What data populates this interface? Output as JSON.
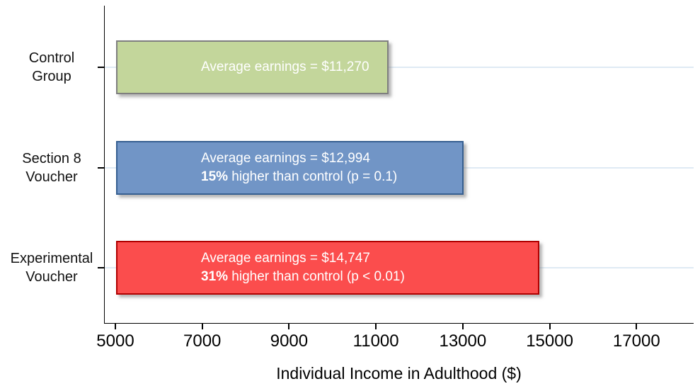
{
  "chart_data": {
    "type": "bar",
    "orientation": "horizontal",
    "title": "",
    "xlabel": "Individual Income in Adulthood ($)",
    "ylabel": "",
    "xlim": [
      5000,
      18315
    ],
    "bar_base": 5000,
    "xticks": [
      "5000",
      "7000",
      "9000",
      "11000",
      "13000",
      "15000",
      "17000"
    ],
    "grid": "light horizontal gridline at each category center",
    "legend_position": "none",
    "categories": [
      "Control Group",
      "Section 8 Voucher",
      "Experimental Voucher"
    ],
    "values": [
      11270,
      12994,
      14747
    ],
    "bars": [
      {
        "name": "control-group",
        "category_lines": [
          "Control",
          "Group"
        ],
        "value": 11270,
        "fill": "#c3d69b",
        "border": "#7f7f7f",
        "annotation_line1": "Average earnings = $11,270",
        "annotation_line2_bold": "",
        "annotation_line2_rest": ""
      },
      {
        "name": "section-8-voucher",
        "category_lines": [
          "Section 8",
          "Voucher"
        ],
        "value": 12994,
        "fill": "#7195c6",
        "border": "#365f91",
        "annotation_line1": "Average earnings = $12,994",
        "annotation_line2_bold": "15%",
        "annotation_line2_rest": " higher than control (p = 0.1)"
      },
      {
        "name": "experimental-voucher",
        "category_lines": [
          "Experimental",
          "Voucher"
        ],
        "value": 14747,
        "fill": "#fb4d4d",
        "border": "#b00000",
        "annotation_line1": "Average earnings = $14,747",
        "annotation_line2_bold": "31%",
        "annotation_line2_rest": " higher than control (p < 0.01)"
      }
    ],
    "colors": {
      "gridline": "#dfeaf4",
      "axis": "#000000",
      "annotation_text": "#ffffff"
    }
  }
}
